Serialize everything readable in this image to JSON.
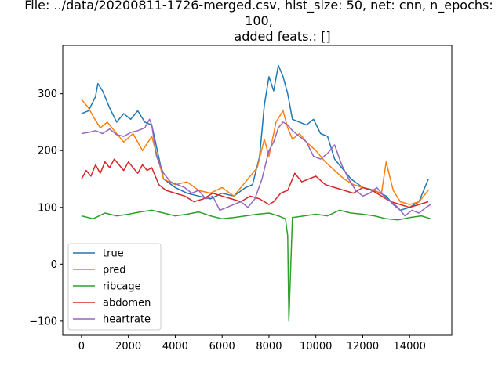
{
  "chart_data": {
    "type": "line",
    "title_lines": [
      "File: ../data/20200811-1726-merged.csv, hist_size: 50, net: cnn, n_epochs:",
      "100,",
      "added feats.: []"
    ],
    "xlabel": "",
    "ylabel": "",
    "xlim": [
      -800,
      15800
    ],
    "ylim": [
      -125,
      385
    ],
    "xticks": [
      0,
      2000,
      4000,
      6000,
      8000,
      10000,
      12000,
      14000
    ],
    "yticks": [
      -100,
      0,
      100,
      200,
      300
    ],
    "grid": false,
    "legend": {
      "placement": "lower-left",
      "entries": [
        "true",
        "pred",
        "ribcage",
        "abdomen",
        "heartrate"
      ]
    },
    "series": [
      {
        "name": "true",
        "color": "#1f77b4",
        "x": [
          0,
          300,
          600,
          700,
          900,
          1200,
          1500,
          1800,
          2100,
          2400,
          2700,
          3000,
          3500,
          4000,
          4500,
          5000,
          5500,
          6000,
          6500,
          7000,
          7300,
          7600,
          7800,
          8000,
          8200,
          8400,
          8600,
          8800,
          9000,
          9300,
          9600,
          9900,
          10200,
          10500,
          10800,
          11000,
          11500,
          12000,
          12500,
          13000,
          13300,
          13600,
          14000,
          14400,
          14800
        ],
        "y": [
          265,
          270,
          295,
          318,
          305,
          275,
          250,
          265,
          255,
          270,
          250,
          245,
          150,
          135,
          125,
          120,
          115,
          125,
          120,
          135,
          140,
          190,
          280,
          330,
          305,
          350,
          330,
          300,
          255,
          250,
          245,
          255,
          230,
          225,
          185,
          175,
          150,
          135,
          130,
          120,
          105,
          95,
          100,
          110,
          150
        ]
      },
      {
        "name": "pred",
        "color": "#ff7f0e",
        "x": [
          0,
          300,
          500,
          800,
          1100,
          1400,
          1800,
          2200,
          2600,
          3000,
          3500,
          4000,
          4500,
          5000,
          5500,
          6000,
          6500,
          7000,
          7500,
          7800,
          8000,
          8300,
          8600,
          8800,
          9000,
          9300,
          9600,
          10000,
          10400,
          10800,
          11200,
          11600,
          12000,
          12400,
          12800,
          13000,
          13300,
          13600,
          14000,
          14400,
          14800
        ],
        "y": [
          290,
          275,
          260,
          240,
          250,
          235,
          215,
          230,
          200,
          225,
          150,
          140,
          145,
          130,
          125,
          135,
          120,
          145,
          170,
          220,
          190,
          250,
          270,
          240,
          220,
          230,
          215,
          200,
          180,
          165,
          150,
          140,
          135,
          130,
          125,
          180,
          130,
          110,
          105,
          110,
          130
        ]
      },
      {
        "name": "ribcage",
        "color": "#2ca02c",
        "x": [
          0,
          500,
          1000,
          1500,
          2000,
          2500,
          3000,
          3500,
          4000,
          4500,
          5000,
          5500,
          6000,
          6500,
          7000,
          7500,
          8000,
          8400,
          8700,
          8800,
          8850,
          9000,
          9500,
          10000,
          10500,
          11000,
          11500,
          12000,
          12500,
          13000,
          13500,
          14000,
          14500,
          14900
        ],
        "y": [
          85,
          80,
          90,
          85,
          88,
          92,
          95,
          90,
          85,
          88,
          92,
          85,
          80,
          82,
          85,
          88,
          90,
          85,
          80,
          50,
          -100,
          82,
          85,
          88,
          85,
          95,
          90,
          88,
          85,
          80,
          78,
          82,
          85,
          80
        ]
      },
      {
        "name": "abdomen",
        "color": "#d62728",
        "x": [
          0,
          200,
          400,
          600,
          800,
          1000,
          1200,
          1400,
          1600,
          1800,
          2000,
          2200,
          2400,
          2600,
          2800,
          3000,
          3300,
          3600,
          4000,
          4400,
          4800,
          5200,
          5600,
          6000,
          6400,
          6800,
          7200,
          7600,
          8000,
          8200,
          8500,
          8800,
          9100,
          9400,
          9700,
          10000,
          10400,
          10800,
          11200,
          11600,
          12000,
          12400,
          12800,
          13200,
          13600,
          14000,
          14400,
          14800
        ],
        "y": [
          150,
          165,
          155,
          175,
          160,
          180,
          170,
          185,
          175,
          165,
          180,
          170,
          160,
          175,
          165,
          170,
          140,
          130,
          125,
          120,
          110,
          115,
          125,
          120,
          115,
          110,
          120,
          115,
          105,
          110,
          125,
          130,
          160,
          145,
          150,
          155,
          140,
          135,
          130,
          125,
          135,
          130,
          120,
          110,
          105,
          100,
          105,
          110
        ]
      },
      {
        "name": "heartrate",
        "color": "#9467bd",
        "x": [
          0,
          300,
          600,
          900,
          1200,
          1500,
          1800,
          2100,
          2400,
          2700,
          2900,
          3000,
          3200,
          3500,
          3800,
          4100,
          4400,
          4700,
          5000,
          5300,
          5600,
          5900,
          6200,
          6500,
          6800,
          7100,
          7400,
          7700,
          8000,
          8200,
          8400,
          8600,
          8800,
          9000,
          9300,
          9600,
          9900,
          10200,
          10500,
          10800,
          11100,
          11400,
          11700,
          12000,
          12300,
          12600,
          12900,
          13200,
          13500,
          13800,
          14100,
          14400,
          14700,
          14900
        ],
        "y": [
          230,
          232,
          235,
          230,
          238,
          228,
          225,
          232,
          235,
          240,
          255,
          245,
          190,
          160,
          145,
          140,
          135,
          125,
          130,
          115,
          120,
          95,
          100,
          105,
          110,
          100,
          115,
          150,
          200,
          215,
          240,
          250,
          245,
          235,
          225,
          215,
          190,
          185,
          195,
          210,
          175,
          150,
          130,
          120,
          125,
          135,
          120,
          110,
          100,
          85,
          95,
          90,
          100,
          105
        ]
      }
    ]
  }
}
